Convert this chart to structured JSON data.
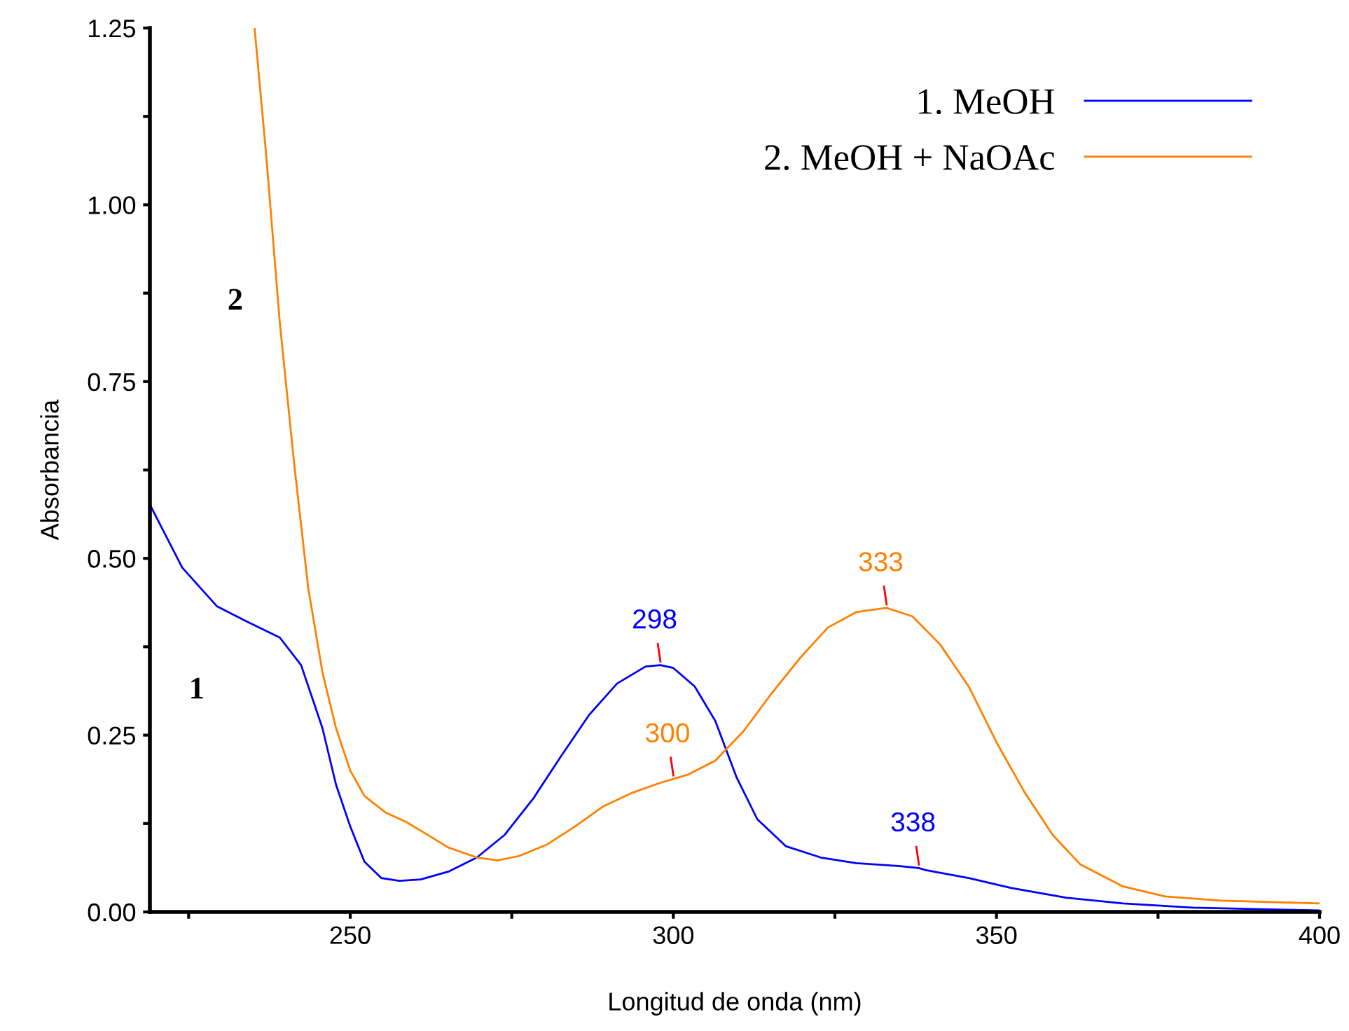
{
  "chart_data": {
    "type": "line",
    "xlabel": "Longitud de onda (nm)",
    "ylabel": "Absorbancia",
    "xlim": [
      219,
      400
    ],
    "ylim": [
      0,
      1.25
    ],
    "xticks": [
      {
        "value": 225,
        "label": null
      },
      250,
      {
        "value": 275,
        "label": null
      },
      300,
      {
        "value": 325,
        "label": null
      },
      350,
      {
        "value": 375,
        "label": null
      },
      400
    ],
    "yticks": [
      {
        "value": 0,
        "label": "0.00"
      },
      {
        "value": 0.125,
        "label": null
      },
      {
        "value": 0.25,
        "label": "0.25"
      },
      {
        "value": 0.375,
        "label": null
      },
      {
        "value": 0.5,
        "label": "0.50"
      },
      {
        "value": 0.625,
        "label": null
      },
      {
        "value": 0.75,
        "label": "0.75"
      },
      {
        "value": 0.875,
        "label": null
      },
      {
        "value": 1.0,
        "label": "1.00"
      },
      {
        "value": 1.125,
        "label": null
      },
      {
        "value": 1.25,
        "label": "1.25"
      }
    ],
    "grid": false,
    "legend": "top right",
    "marker": "none",
    "line_style": "solid",
    "annotations": [
      "1",
      "2",
      {
        "text": "298",
        "x": 298,
        "y": 0.349
      },
      {
        "text": "338",
        "x": 338,
        "y": 0.062
      },
      {
        "text": "300",
        "x": 300,
        "y": 0.188
      },
      {
        "text": "333",
        "x": 333,
        "y": 0.43
      }
    ],
    "series": [
      {
        "name": "1. MeOH",
        "color": "#0000ff",
        "x": [
          219,
          224,
          229.4,
          233.7,
          239.1,
          242.4,
          245.7,
          247.8,
          250,
          252.2,
          254.8,
          257.6,
          260.9,
          265.2,
          269.6,
          273.9,
          278.3,
          282.6,
          287,
          291.3,
          295.7,
          298,
          300,
          303.3,
          306.5,
          309.8,
          313,
          317.4,
          322.8,
          328.3,
          334.8,
          338,
          339.1,
          345.7,
          352.2,
          360.9,
          369.6,
          380.4,
          400
        ],
        "values": [
          0.576,
          0.487,
          0.432,
          0.412,
          0.388,
          0.349,
          0.26,
          0.18,
          0.121,
          0.071,
          0.048,
          0.044,
          0.046,
          0.057,
          0.077,
          0.109,
          0.16,
          0.22,
          0.279,
          0.323,
          0.347,
          0.349,
          0.345,
          0.319,
          0.27,
          0.19,
          0.131,
          0.093,
          0.077,
          0.069,
          0.065,
          0.062,
          0.059,
          0.048,
          0.034,
          0.02,
          0.012,
          0.006,
          0.002
        ]
      },
      {
        "name": "2. MeOH + NaOAc",
        "color": "#ff8000",
        "x": [
          235.2,
          237,
          239.1,
          241.3,
          243.5,
          245.7,
          247.8,
          250,
          252.2,
          255.4,
          258.7,
          260.9,
          265.2,
          269.6,
          272.8,
          276.1,
          280.4,
          284.8,
          289.1,
          293.5,
          297.8,
          300,
          302.2,
          306.5,
          310.9,
          315.2,
          319.6,
          323.9,
          328.3,
          333,
          337,
          341.3,
          345.7,
          350,
          354.3,
          358.7,
          363,
          369.6,
          376.1,
          384.8,
          400
        ],
        "values": [
          1.25,
          1.07,
          0.834,
          0.636,
          0.458,
          0.339,
          0.26,
          0.2,
          0.164,
          0.141,
          0.127,
          0.115,
          0.091,
          0.077,
          0.073,
          0.079,
          0.095,
          0.121,
          0.149,
          0.168,
          0.182,
          0.188,
          0.194,
          0.214,
          0.256,
          0.309,
          0.359,
          0.402,
          0.424,
          0.43,
          0.418,
          0.378,
          0.319,
          0.24,
          0.17,
          0.109,
          0.067,
          0.036,
          0.022,
          0.016,
          0.012
        ]
      }
    ]
  }
}
